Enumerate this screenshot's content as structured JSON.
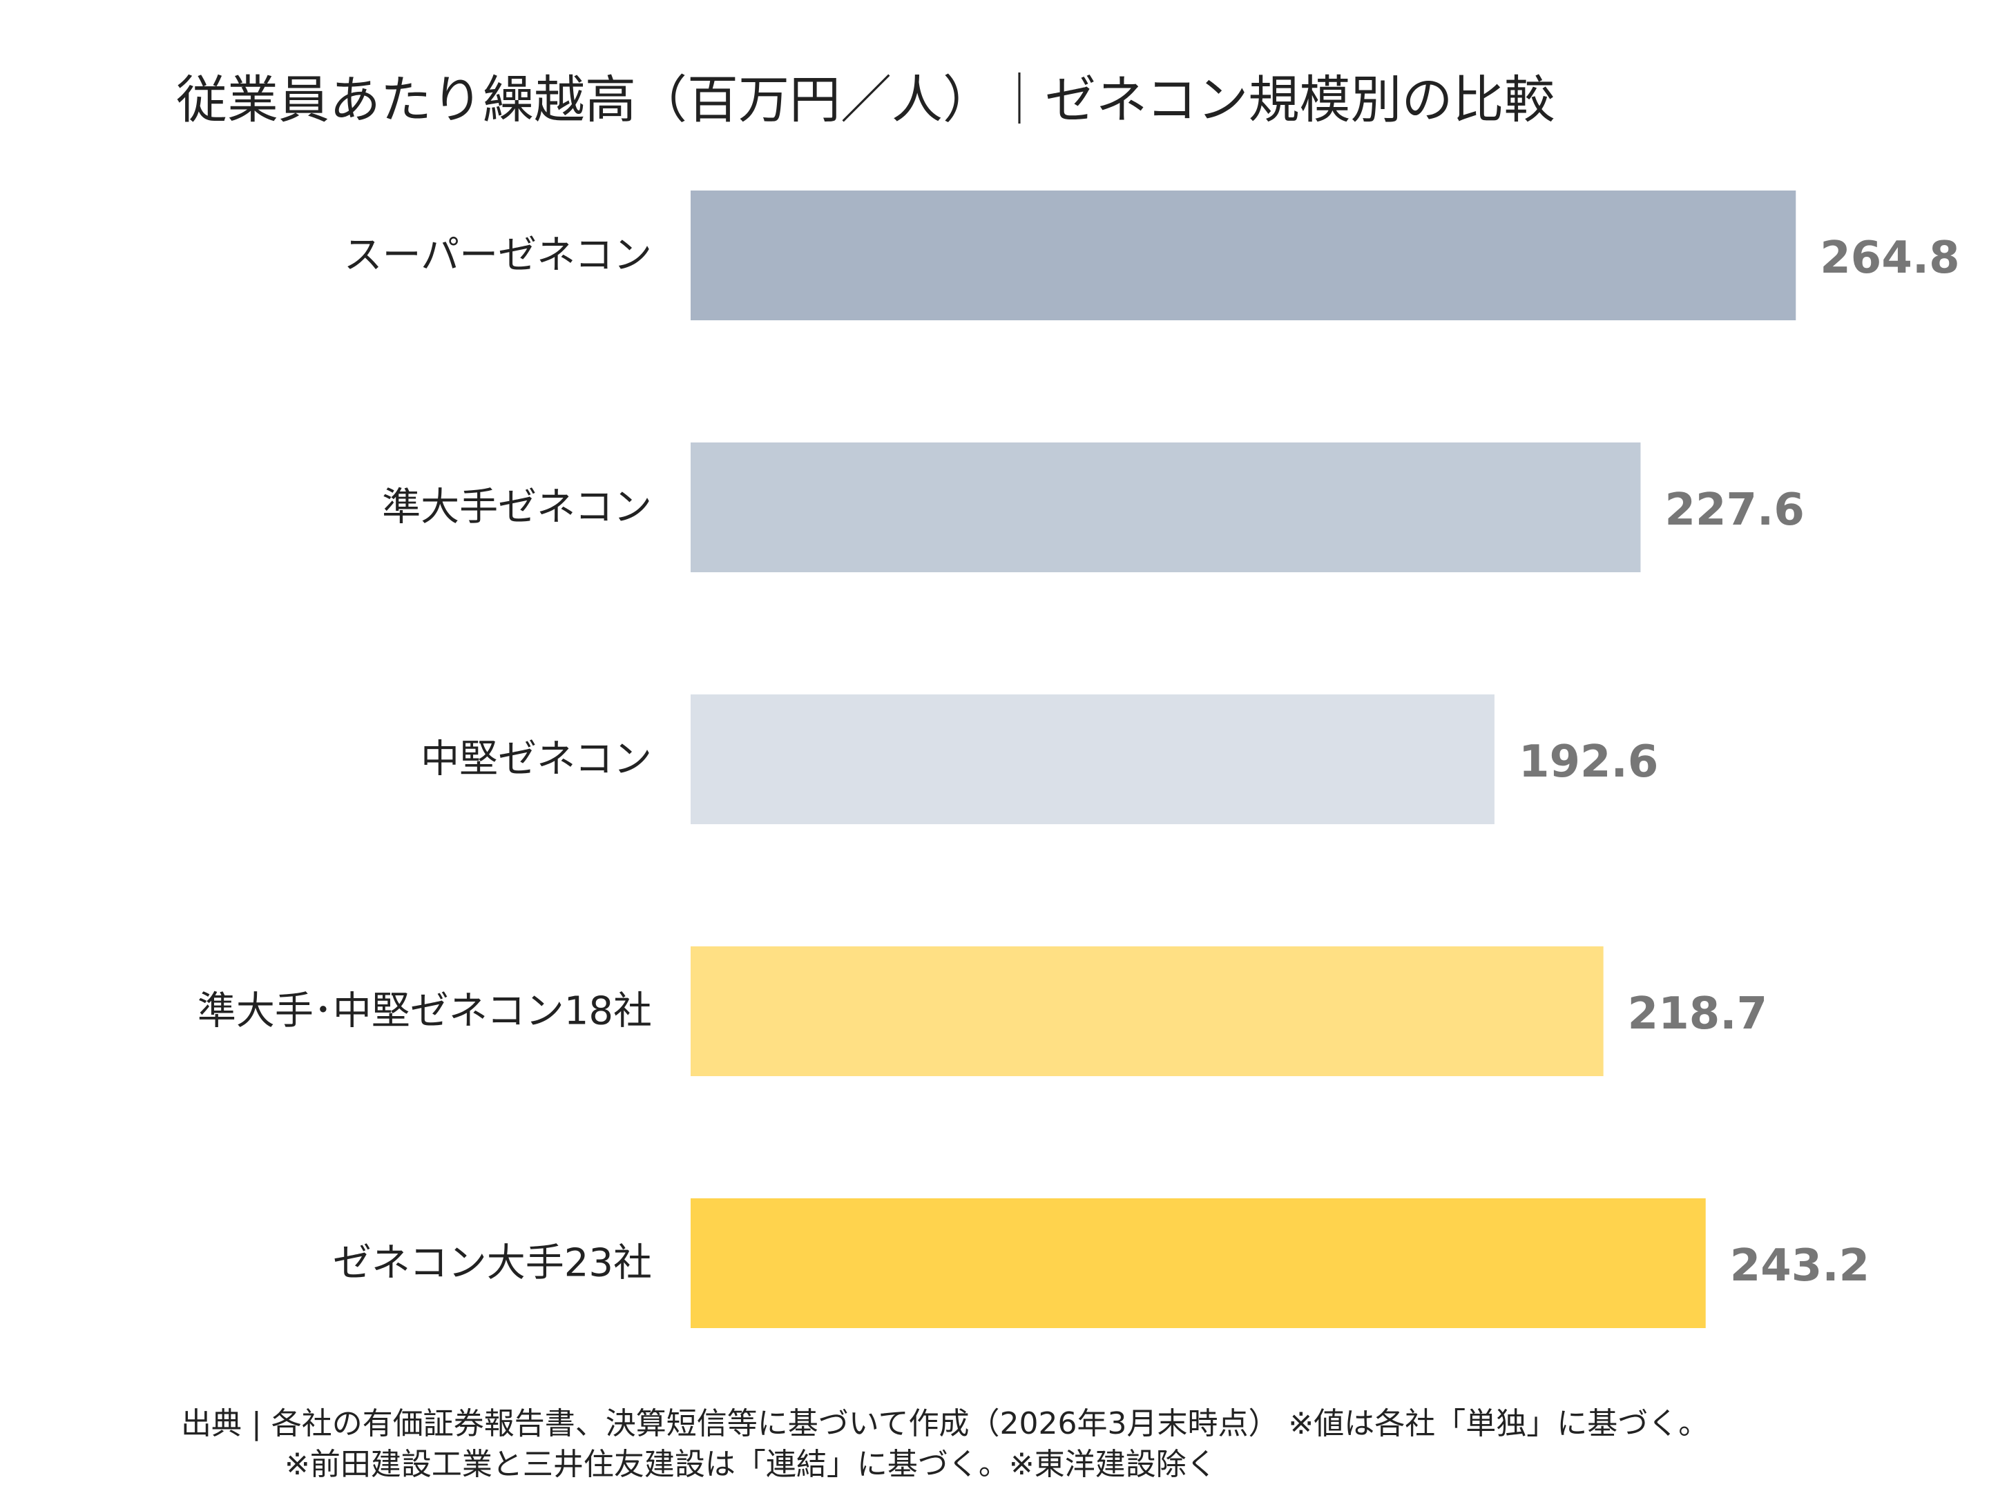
{
  "chart_data": {
    "type": "bar",
    "orientation": "horizontal",
    "title": "従業員あたり繰越高（百万円／人）｜ゼネコン規模別の比較",
    "categories": [
      "スーパーゼネコン",
      "準大手ゼネコン",
      "中堅ゼネコン",
      "準大手･中堅ゼネコン18社",
      "ゼネコン大手23社"
    ],
    "values": [
      264.8,
      227.6,
      192.6,
      218.7,
      243.2
    ],
    "value_labels": [
      "264.8",
      "227.6",
      "192.6",
      "218.7",
      "243.2"
    ],
    "bar_colors": [
      "#a8b4c5",
      "#c1cbd7",
      "#dae0e8",
      "#ffe084",
      "#ffd34d"
    ],
    "value_label_color": "#777777",
    "xlim": [
      0,
      300
    ],
    "grid": false,
    "legend": "none"
  },
  "footer": {
    "source_line_1": "出典 | 各社の有価証券報告書、決算短信等に基づいて作成（2026年3月末時点） ※値は各社「単独」に基づく。",
    "source_line_2": "※前田建設工業と三井住友建設は「連結」に基づく。※東洋建設除く"
  }
}
